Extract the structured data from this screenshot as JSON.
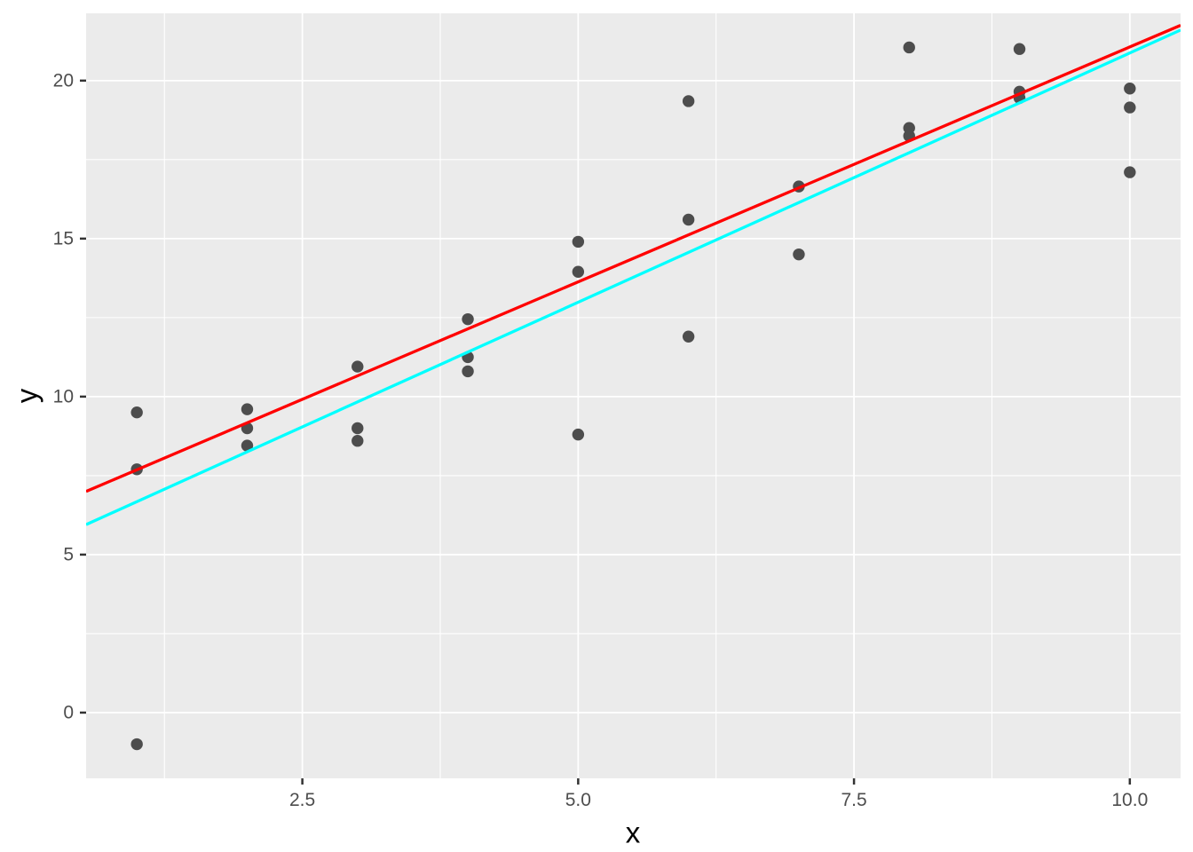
{
  "chart_data": {
    "type": "scatter",
    "title": "",
    "xlabel": "x",
    "ylabel": "y",
    "xlim": [
      0.54,
      10.46
    ],
    "ylim": [
      -2.08,
      22.13
    ],
    "grid": true,
    "legend": "none",
    "x_ticks": {
      "values": [
        2.5,
        5.0,
        7.5,
        10.0
      ],
      "labels": [
        "2.5",
        "5.0",
        "7.5",
        "10.0"
      ]
    },
    "y_ticks": {
      "values": [
        0,
        5,
        10,
        15,
        20
      ],
      "labels": [
        "0",
        "5",
        "10",
        "15",
        "20"
      ]
    },
    "x_minor_gridlines": [
      1.25,
      3.75,
      6.25,
      8.75
    ],
    "y_minor_gridlines": [
      2.5,
      7.5,
      12.5,
      17.5
    ],
    "points": [
      [
        1,
        9.5
      ],
      [
        1,
        7.7
      ],
      [
        1,
        -1.0
      ],
      [
        2,
        9.6
      ],
      [
        2,
        9.0
      ],
      [
        2,
        8.45
      ],
      [
        3,
        10.95
      ],
      [
        3,
        9.0
      ],
      [
        3,
        8.6
      ],
      [
        4,
        12.45
      ],
      [
        4,
        11.25
      ],
      [
        4,
        10.8
      ],
      [
        5,
        14.9
      ],
      [
        5,
        13.95
      ],
      [
        5,
        8.8
      ],
      [
        6,
        19.35
      ],
      [
        6,
        15.6
      ],
      [
        6,
        11.9
      ],
      [
        7,
        16.65
      ],
      [
        7,
        14.5
      ],
      [
        8,
        21.05
      ],
      [
        8,
        18.5
      ],
      [
        8,
        18.25
      ],
      [
        9,
        21.0
      ],
      [
        9,
        19.65
      ],
      [
        9,
        19.45
      ],
      [
        10,
        19.75
      ],
      [
        10,
        19.15
      ],
      [
        10,
        17.1
      ]
    ],
    "lines": [
      {
        "name": "reference-line-cyan",
        "color": "#00FFFF",
        "x1": 0.54,
        "y1": 5.95,
        "x2": 10.46,
        "y2": 21.6
      },
      {
        "name": "fitted-line-red",
        "color": "#FF0000",
        "x1": 0.54,
        "y1": 7.0,
        "x2": 10.46,
        "y2": 21.75
      }
    ],
    "colors": {
      "panel_background": "#EBEBEB",
      "gridline": "#FFFFFF",
      "point": "#4D4D4D",
      "tick_mark": "#333333",
      "axis_text": "#4D4D4D",
      "axis_title": "#000000",
      "figure_background": "#FFFFFF"
    }
  }
}
